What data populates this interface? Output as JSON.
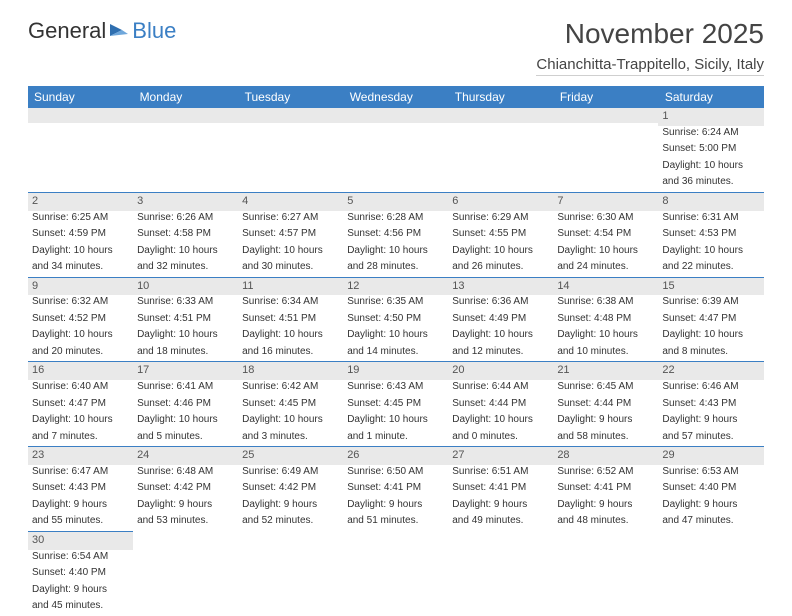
{
  "brand": {
    "part1": "General",
    "part2": "Blue"
  },
  "title": "November 2025",
  "location": "Chianchitta-Trappitello, Sicily, Italy",
  "colors": {
    "header_bg": "#3b7fc4",
    "header_text": "#ffffff",
    "daynum_bg": "#e9e9e9",
    "border": "#3b7fc4",
    "text": "#333333",
    "background": "#ffffff"
  },
  "days_of_week": [
    "Sunday",
    "Monday",
    "Tuesday",
    "Wednesday",
    "Thursday",
    "Friday",
    "Saturday"
  ],
  "weeks": [
    [
      null,
      null,
      null,
      null,
      null,
      null,
      {
        "n": "1",
        "sr": "Sunrise: 6:24 AM",
        "ss": "Sunset: 5:00 PM",
        "d1": "Daylight: 10 hours",
        "d2": "and 36 minutes."
      }
    ],
    [
      {
        "n": "2",
        "sr": "Sunrise: 6:25 AM",
        "ss": "Sunset: 4:59 PM",
        "d1": "Daylight: 10 hours",
        "d2": "and 34 minutes."
      },
      {
        "n": "3",
        "sr": "Sunrise: 6:26 AM",
        "ss": "Sunset: 4:58 PM",
        "d1": "Daylight: 10 hours",
        "d2": "and 32 minutes."
      },
      {
        "n": "4",
        "sr": "Sunrise: 6:27 AM",
        "ss": "Sunset: 4:57 PM",
        "d1": "Daylight: 10 hours",
        "d2": "and 30 minutes."
      },
      {
        "n": "5",
        "sr": "Sunrise: 6:28 AM",
        "ss": "Sunset: 4:56 PM",
        "d1": "Daylight: 10 hours",
        "d2": "and 28 minutes."
      },
      {
        "n": "6",
        "sr": "Sunrise: 6:29 AM",
        "ss": "Sunset: 4:55 PM",
        "d1": "Daylight: 10 hours",
        "d2": "and 26 minutes."
      },
      {
        "n": "7",
        "sr": "Sunrise: 6:30 AM",
        "ss": "Sunset: 4:54 PM",
        "d1": "Daylight: 10 hours",
        "d2": "and 24 minutes."
      },
      {
        "n": "8",
        "sr": "Sunrise: 6:31 AM",
        "ss": "Sunset: 4:53 PM",
        "d1": "Daylight: 10 hours",
        "d2": "and 22 minutes."
      }
    ],
    [
      {
        "n": "9",
        "sr": "Sunrise: 6:32 AM",
        "ss": "Sunset: 4:52 PM",
        "d1": "Daylight: 10 hours",
        "d2": "and 20 minutes."
      },
      {
        "n": "10",
        "sr": "Sunrise: 6:33 AM",
        "ss": "Sunset: 4:51 PM",
        "d1": "Daylight: 10 hours",
        "d2": "and 18 minutes."
      },
      {
        "n": "11",
        "sr": "Sunrise: 6:34 AM",
        "ss": "Sunset: 4:51 PM",
        "d1": "Daylight: 10 hours",
        "d2": "and 16 minutes."
      },
      {
        "n": "12",
        "sr": "Sunrise: 6:35 AM",
        "ss": "Sunset: 4:50 PM",
        "d1": "Daylight: 10 hours",
        "d2": "and 14 minutes."
      },
      {
        "n": "13",
        "sr": "Sunrise: 6:36 AM",
        "ss": "Sunset: 4:49 PM",
        "d1": "Daylight: 10 hours",
        "d2": "and 12 minutes."
      },
      {
        "n": "14",
        "sr": "Sunrise: 6:38 AM",
        "ss": "Sunset: 4:48 PM",
        "d1": "Daylight: 10 hours",
        "d2": "and 10 minutes."
      },
      {
        "n": "15",
        "sr": "Sunrise: 6:39 AM",
        "ss": "Sunset: 4:47 PM",
        "d1": "Daylight: 10 hours",
        "d2": "and 8 minutes."
      }
    ],
    [
      {
        "n": "16",
        "sr": "Sunrise: 6:40 AM",
        "ss": "Sunset: 4:47 PM",
        "d1": "Daylight: 10 hours",
        "d2": "and 7 minutes."
      },
      {
        "n": "17",
        "sr": "Sunrise: 6:41 AM",
        "ss": "Sunset: 4:46 PM",
        "d1": "Daylight: 10 hours",
        "d2": "and 5 minutes."
      },
      {
        "n": "18",
        "sr": "Sunrise: 6:42 AM",
        "ss": "Sunset: 4:45 PM",
        "d1": "Daylight: 10 hours",
        "d2": "and 3 minutes."
      },
      {
        "n": "19",
        "sr": "Sunrise: 6:43 AM",
        "ss": "Sunset: 4:45 PM",
        "d1": "Daylight: 10 hours",
        "d2": "and 1 minute."
      },
      {
        "n": "20",
        "sr": "Sunrise: 6:44 AM",
        "ss": "Sunset: 4:44 PM",
        "d1": "Daylight: 10 hours",
        "d2": "and 0 minutes."
      },
      {
        "n": "21",
        "sr": "Sunrise: 6:45 AM",
        "ss": "Sunset: 4:44 PM",
        "d1": "Daylight: 9 hours",
        "d2": "and 58 minutes."
      },
      {
        "n": "22",
        "sr": "Sunrise: 6:46 AM",
        "ss": "Sunset: 4:43 PM",
        "d1": "Daylight: 9 hours",
        "d2": "and 57 minutes."
      }
    ],
    [
      {
        "n": "23",
        "sr": "Sunrise: 6:47 AM",
        "ss": "Sunset: 4:43 PM",
        "d1": "Daylight: 9 hours",
        "d2": "and 55 minutes."
      },
      {
        "n": "24",
        "sr": "Sunrise: 6:48 AM",
        "ss": "Sunset: 4:42 PM",
        "d1": "Daylight: 9 hours",
        "d2": "and 53 minutes."
      },
      {
        "n": "25",
        "sr": "Sunrise: 6:49 AM",
        "ss": "Sunset: 4:42 PM",
        "d1": "Daylight: 9 hours",
        "d2": "and 52 minutes."
      },
      {
        "n": "26",
        "sr": "Sunrise: 6:50 AM",
        "ss": "Sunset: 4:41 PM",
        "d1": "Daylight: 9 hours",
        "d2": "and 51 minutes."
      },
      {
        "n": "27",
        "sr": "Sunrise: 6:51 AM",
        "ss": "Sunset: 4:41 PM",
        "d1": "Daylight: 9 hours",
        "d2": "and 49 minutes."
      },
      {
        "n": "28",
        "sr": "Sunrise: 6:52 AM",
        "ss": "Sunset: 4:41 PM",
        "d1": "Daylight: 9 hours",
        "d2": "and 48 minutes."
      },
      {
        "n": "29",
        "sr": "Sunrise: 6:53 AM",
        "ss": "Sunset: 4:40 PM",
        "d1": "Daylight: 9 hours",
        "d2": "and 47 minutes."
      }
    ],
    [
      {
        "n": "30",
        "sr": "Sunrise: 6:54 AM",
        "ss": "Sunset: 4:40 PM",
        "d1": "Daylight: 9 hours",
        "d2": "and 45 minutes."
      },
      null,
      null,
      null,
      null,
      null,
      null
    ]
  ]
}
